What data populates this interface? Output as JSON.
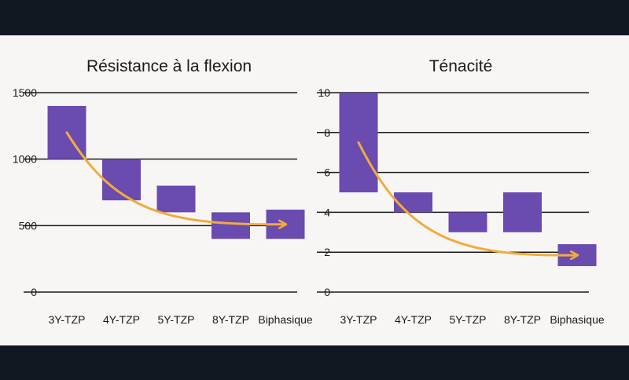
{
  "colors": {
    "bar": "#6a4bb0",
    "arrow": "#f2ac3c",
    "grid": "#1a1a1a",
    "background": "#f8f6f5",
    "frame": "#111822"
  },
  "chart_data": [
    {
      "type": "bar",
      "subtype": "floating",
      "title": "Résistance à la flexion",
      "categories": [
        "3Y-TZP",
        "4Y-TZP",
        "5Y-TZP",
        "8Y-TZP",
        "Biphasique"
      ],
      "ranges": [
        [
          1000,
          1400
        ],
        [
          690,
          1000
        ],
        [
          600,
          800
        ],
        [
          400,
          600
        ],
        [
          400,
          620
        ]
      ],
      "ylim": [
        0,
        1500
      ],
      "yticks": [
        0,
        500,
        1000,
        1500
      ],
      "ytick_labels": [
        "0",
        "500",
        "1000",
        "1500"
      ],
      "trend_arrow": {
        "from_index": 0,
        "to_index": 4,
        "direction": "decreasing"
      },
      "grid": true
    },
    {
      "type": "bar",
      "subtype": "floating",
      "title": "Ténacité",
      "categories": [
        "3Y-TZP",
        "4Y-TZP",
        "5Y-TZP",
        "8Y-TZP",
        "Biphasique"
      ],
      "ranges": [
        [
          5,
          10
        ],
        [
          4,
          5
        ],
        [
          3,
          4
        ],
        [
          3,
          5
        ],
        [
          1.3,
          2.4
        ]
      ],
      "ylim": [
        0,
        10
      ],
      "yticks": [
        0,
        2,
        4,
        6,
        8,
        10
      ],
      "ytick_labels": [
        "0",
        "2",
        "4",
        "6",
        "8",
        "10"
      ],
      "trend_arrow": {
        "from_index": 0,
        "to_index": 4,
        "direction": "decreasing"
      },
      "grid": true
    }
  ]
}
